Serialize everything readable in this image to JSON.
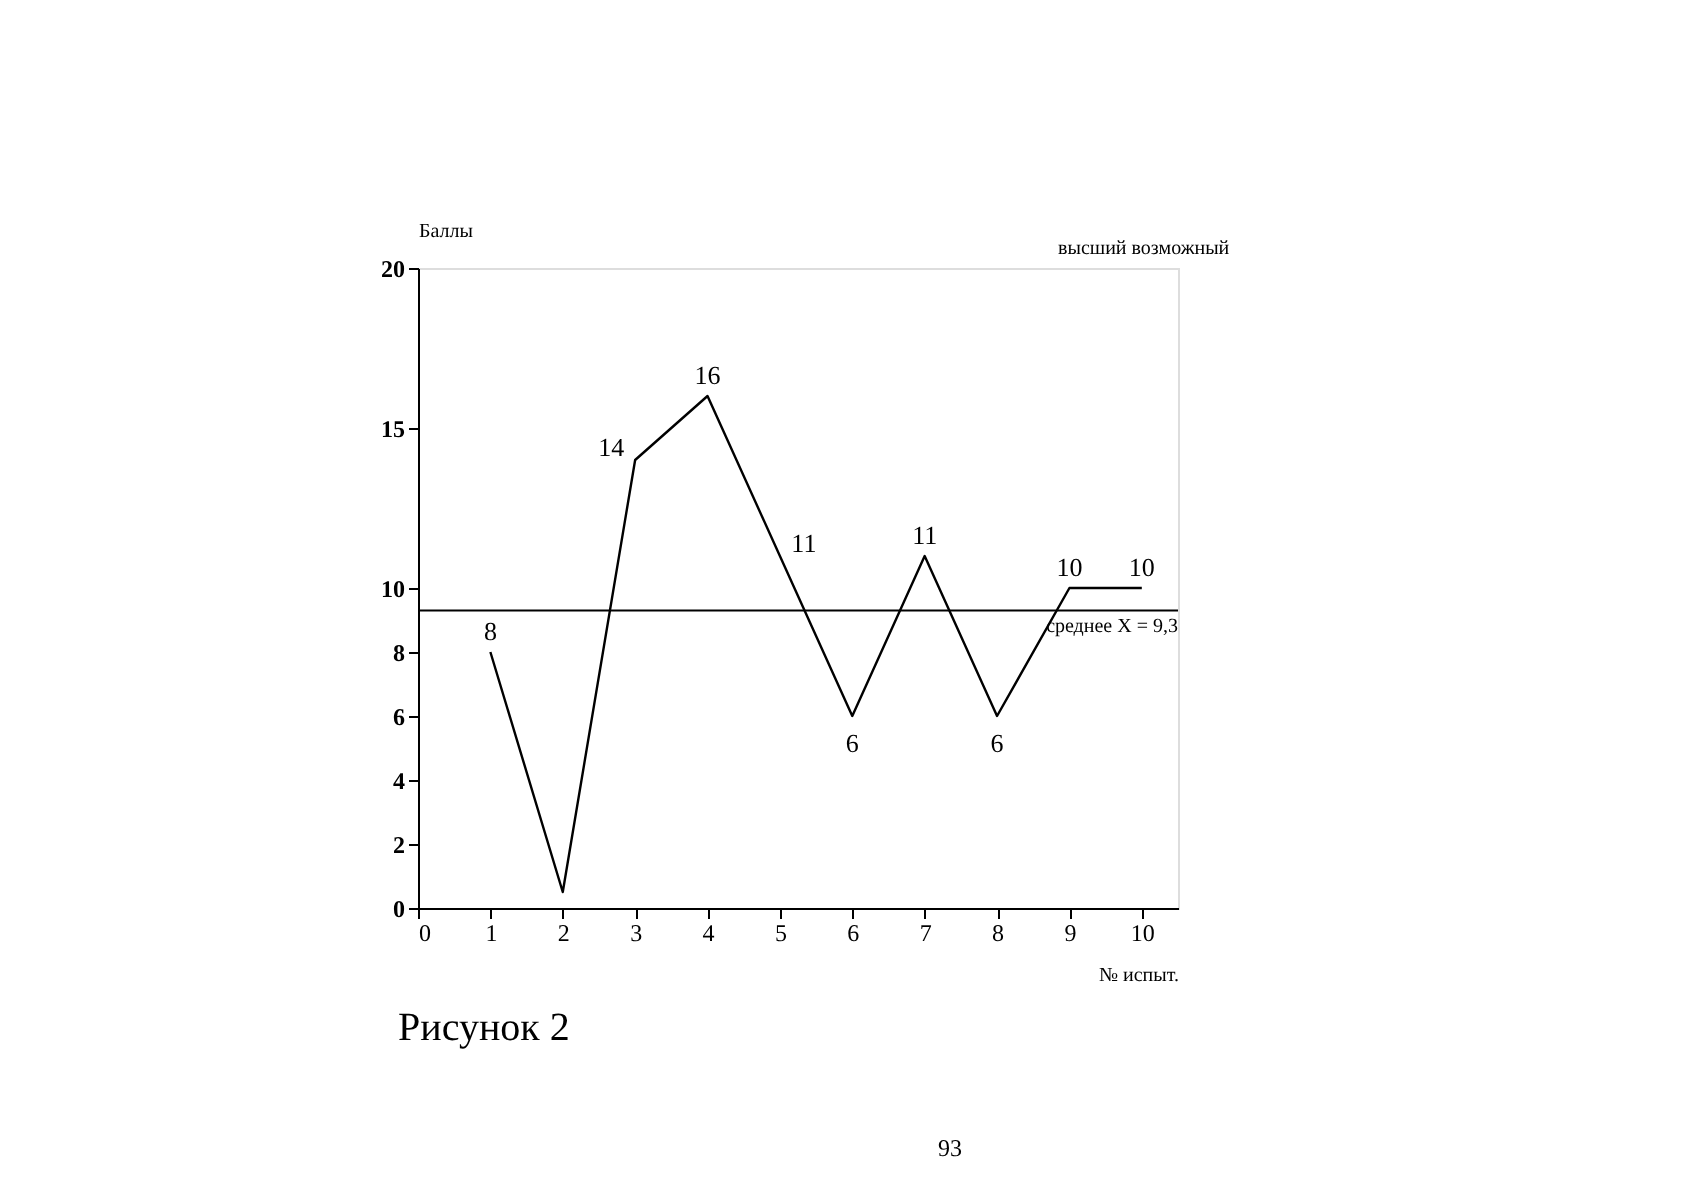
{
  "chart_data": {
    "type": "line",
    "x": [
      1,
      2,
      3,
      4,
      5,
      6,
      7,
      8,
      9,
      10
    ],
    "values": [
      8,
      0.5,
      14,
      16,
      11,
      6,
      11,
      6,
      10,
      10
    ],
    "value_labels": [
      "8",
      null,
      "14",
      "16",
      "11",
      "6",
      "11",
      "6",
      "10",
      "10"
    ],
    "color": "#000000",
    "xlim": [
      0,
      10.5
    ],
    "xticks": [
      0,
      1,
      2,
      3,
      4,
      5,
      6,
      7,
      8,
      9,
      10
    ],
    "ylim": [
      0,
      20
    ],
    "yticks": [
      0,
      2,
      4,
      6,
      8,
      10,
      15,
      20
    ],
    "ylabel": "Баллы",
    "xlabel": "№ испыт.",
    "ref_lines": [
      {
        "axis": "y",
        "value": 9.3,
        "label": "среднее X = 9,3"
      }
    ],
    "annotations": [
      "высший возможный",
      "Рисунок 2",
      "93"
    ],
    "grid": false,
    "marker": "none",
    "line_style": "solid"
  }
}
